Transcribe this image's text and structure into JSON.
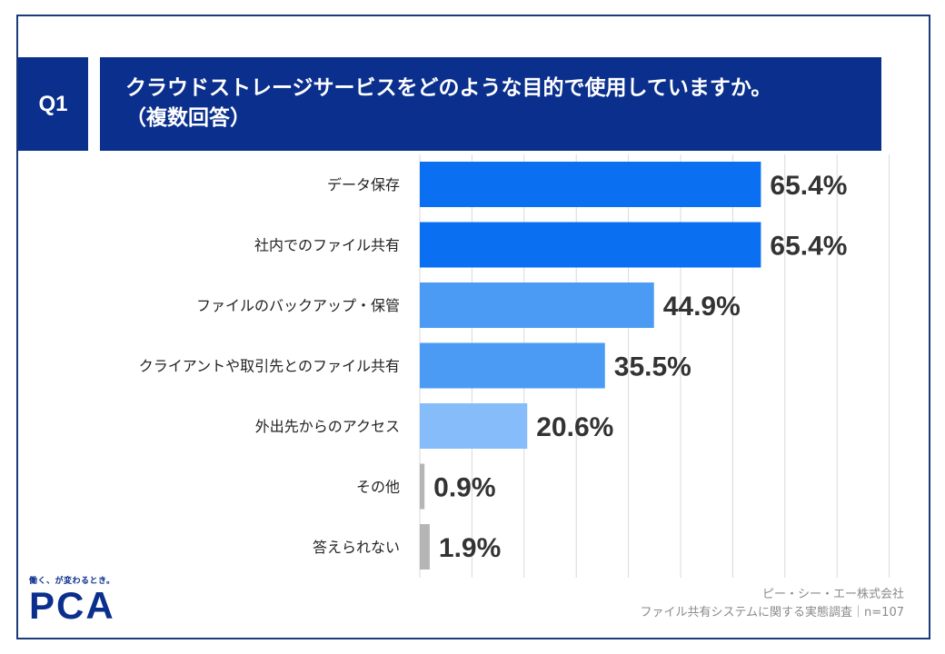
{
  "header": {
    "q_label": "Q1",
    "title_line1": "クラウドストレージサービスをどのような目的で使用していますか。",
    "title_line2": "（複数回答）"
  },
  "chart_data": {
    "type": "bar",
    "orientation": "horizontal",
    "categories": [
      "データ保存",
      "社内でのファイル共有",
      "ファイルのバックアップ・保管",
      "クライアントや取引先とのファイル共有",
      "外出先からのアクセス",
      "その他",
      "答えられない"
    ],
    "values": [
      65.4,
      65.4,
      44.9,
      35.5,
      20.6,
      0.9,
      1.9
    ],
    "value_labels": [
      "65.4%",
      "65.4%",
      "44.9%",
      "35.5%",
      "20.6%",
      "0.9%",
      "1.9%"
    ],
    "bar_colors": [
      "#0a6ff0",
      "#0a6ff0",
      "#4b9bf5",
      "#4b9bf5",
      "#86bcf9",
      "#b5b5b5",
      "#b5b5b5"
    ],
    "xlim": [
      0,
      100
    ],
    "grid": true,
    "title": "",
    "xlabel": "",
    "ylabel": ""
  },
  "footer": {
    "logo_tagline": "働く、が変わるとき。",
    "logo_text": "PCA",
    "source_company": "ピー・シー・エー株式会社",
    "source_survey": "ファイル共有システムに関する実態調査｜n=107"
  },
  "colors": {
    "header_bg": "#0a2f8c",
    "frame": "#1a3a7a",
    "gridline": "#d9d9d9"
  }
}
